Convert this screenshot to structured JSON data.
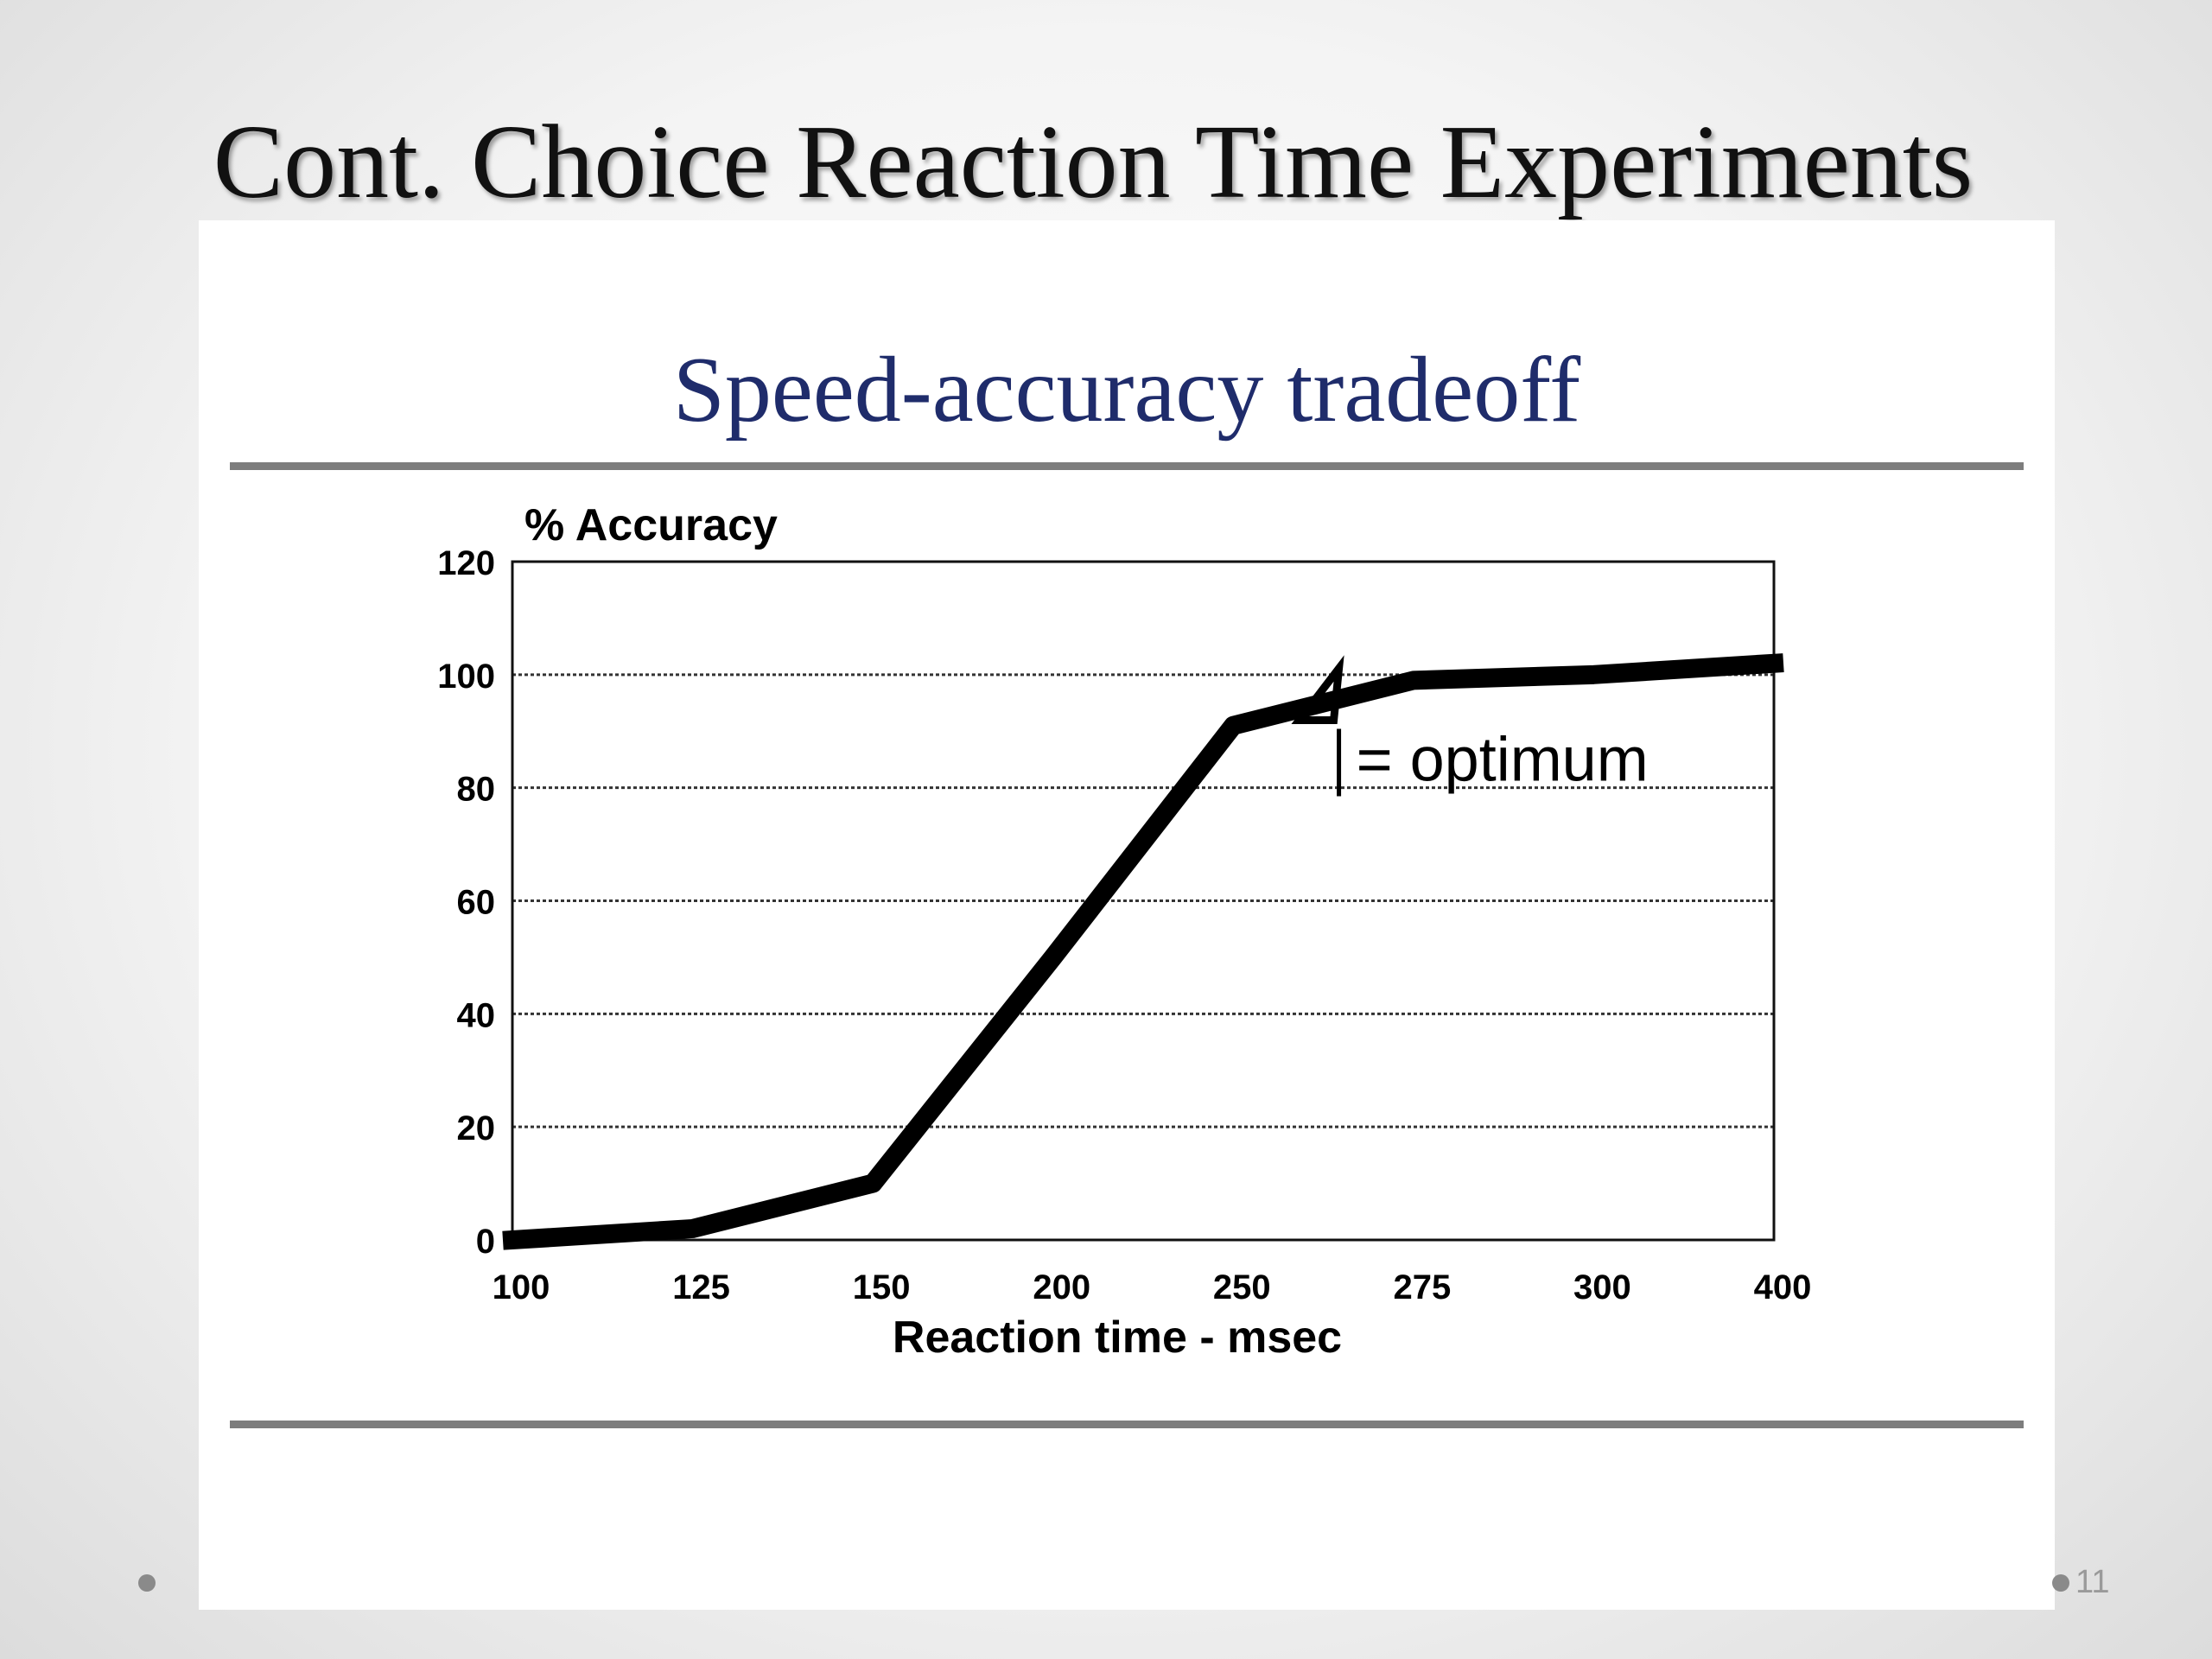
{
  "slide": {
    "title": "Cont. Choice Reaction Time Experiments",
    "page_number": "11"
  },
  "chart_data": {
    "type": "line",
    "title": "Speed-accuracy tradeoff",
    "xlabel": "Reaction time - msec",
    "ylabel": "% Accuracy",
    "categories": [
      "100",
      "125",
      "150",
      "200",
      "250",
      "275",
      "300",
      "400"
    ],
    "series": [
      {
        "values": [
          0,
          2,
          10,
          50,
          91,
          99,
          100,
          102
        ]
      }
    ],
    "yticks": [
      0,
      20,
      40,
      60,
      80,
      100,
      120
    ],
    "ylim": [
      0,
      120
    ],
    "grid": true,
    "line_color": "#000000",
    "annotation": {
      "text": "= optimum",
      "marker": "|",
      "x_position": 262.5
    }
  }
}
